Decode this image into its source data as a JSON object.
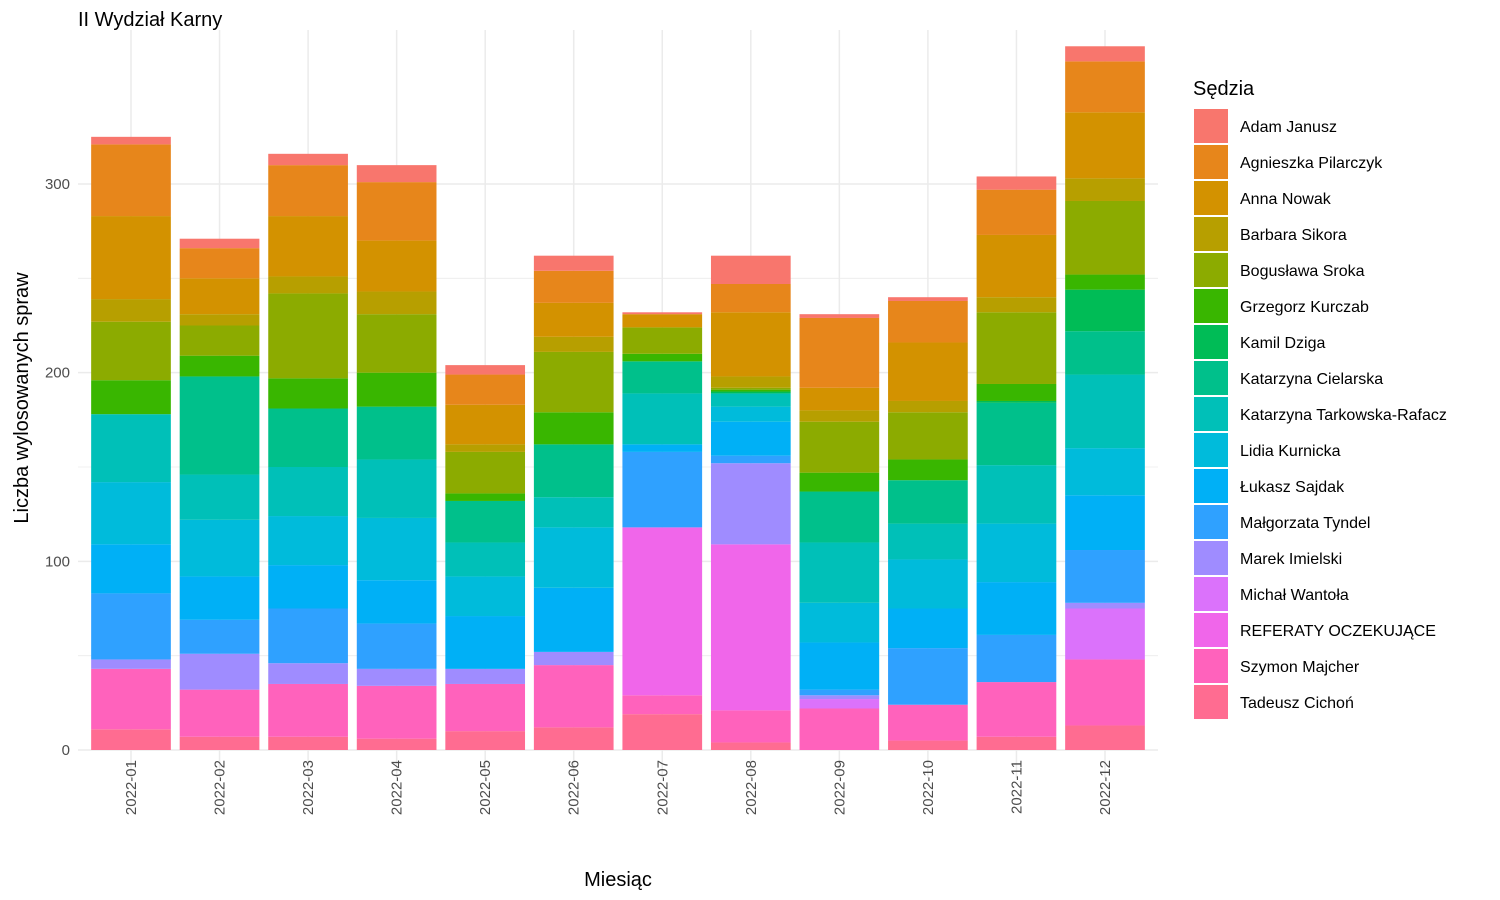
{
  "chart_data": {
    "type": "bar",
    "stacked": true,
    "title": "II Wydział Karny",
    "xlabel": "Miesiąc",
    "ylabel": "Liczba wylosowanych spraw",
    "legend_title": "Sędzia",
    "legend_position": "right",
    "grid": true,
    "ylim": [
      0,
      375
    ],
    "yticks": [
      0,
      100,
      200,
      300
    ],
    "categories": [
      "2022-01",
      "2022-02",
      "2022-03",
      "2022-04",
      "2022-05",
      "2022-06",
      "2022-07",
      "2022-08",
      "2022-09",
      "2022-10",
      "2022-11",
      "2022-12"
    ],
    "series": [
      {
        "name": "Tadeusz Cichoń",
        "color": "#FF6C91",
        "values": [
          11,
          7,
          7,
          6,
          10,
          12,
          19,
          4,
          0,
          5,
          7,
          13
        ]
      },
      {
        "name": "Szymon Majcher",
        "color": "#FF62BC",
        "values": [
          32,
          25,
          28,
          28,
          25,
          33,
          10,
          17,
          22,
          19,
          29,
          35
        ]
      },
      {
        "name": "REFERATY OCZEKUJĄCE",
        "color": "#F066EA",
        "values": [
          0,
          0,
          0,
          0,
          0,
          0,
          89,
          88,
          0,
          0,
          0,
          0
        ]
      },
      {
        "name": "Michał Wantoła",
        "color": "#DB72FB",
        "values": [
          0,
          0,
          0,
          0,
          0,
          0,
          0,
          0,
          5,
          0,
          0,
          27
        ]
      },
      {
        "name": "Marek Imielski",
        "color": "#9F8CFF",
        "values": [
          5,
          19,
          11,
          9,
          8,
          7,
          0,
          43,
          2,
          0,
          0,
          3
        ]
      },
      {
        "name": "Małgorzata Tyndel",
        "color": "#2FA1FF",
        "values": [
          35,
          18,
          29,
          24,
          0,
          0,
          40,
          4,
          3,
          30,
          25,
          28
        ]
      },
      {
        "name": "Łukasz Sajdak",
        "color": "#00B0F6",
        "values": [
          26,
          23,
          23,
          23,
          28,
          34,
          4,
          18,
          25,
          21,
          28,
          29
        ]
      },
      {
        "name": "Lidia Kurnicka",
        "color": "#00BBDB",
        "values": [
          33,
          30,
          26,
          33,
          21,
          32,
          0,
          8,
          21,
          26,
          31,
          25
        ]
      },
      {
        "name": "Katarzyna Tarkowska-Rafacz",
        "color": "#00C0B8",
        "values": [
          36,
          24,
          26,
          31,
          18,
          16,
          27,
          7,
          32,
          19,
          31,
          39
        ]
      },
      {
        "name": "Katarzyna Cielarska",
        "color": "#00C08B",
        "values": [
          0,
          52,
          31,
          28,
          22,
          28,
          17,
          0,
          27,
          23,
          33,
          23
        ]
      },
      {
        "name": "Kamil Dziga",
        "color": "#00BC56",
        "values": [
          0,
          0,
          0,
          0,
          0,
          0,
          0,
          1,
          0,
          0,
          1,
          22
        ]
      },
      {
        "name": "Grzegorz Kurczab",
        "color": "#39B600",
        "values": [
          18,
          11,
          16,
          18,
          4,
          17,
          4,
          1,
          10,
          11,
          9,
          8
        ]
      },
      {
        "name": "Bogusława Sroka",
        "color": "#8CAB00",
        "values": [
          31,
          16,
          45,
          31,
          22,
          32,
          14,
          1,
          27,
          25,
          38,
          39
        ]
      },
      {
        "name": "Barbara Sikora",
        "color": "#B79F00",
        "values": [
          12,
          6,
          9,
          12,
          4,
          8,
          0,
          6,
          6,
          6,
          8,
          12
        ]
      },
      {
        "name": "Anna Nowak",
        "color": "#D39200",
        "values": [
          44,
          19,
          32,
          27,
          21,
          18,
          7,
          34,
          12,
          31,
          33,
          35
        ]
      },
      {
        "name": "Agnieszka Pilarczyk",
        "color": "#E7861B",
        "values": [
          38,
          16,
          27,
          31,
          16,
          17,
          0,
          15,
          37,
          22,
          24,
          27
        ]
      },
      {
        "name": "Adam Janusz",
        "color": "#F8766D",
        "values": [
          4,
          5,
          6,
          9,
          5,
          8,
          1,
          15,
          2,
          2,
          7,
          8
        ]
      }
    ]
  }
}
